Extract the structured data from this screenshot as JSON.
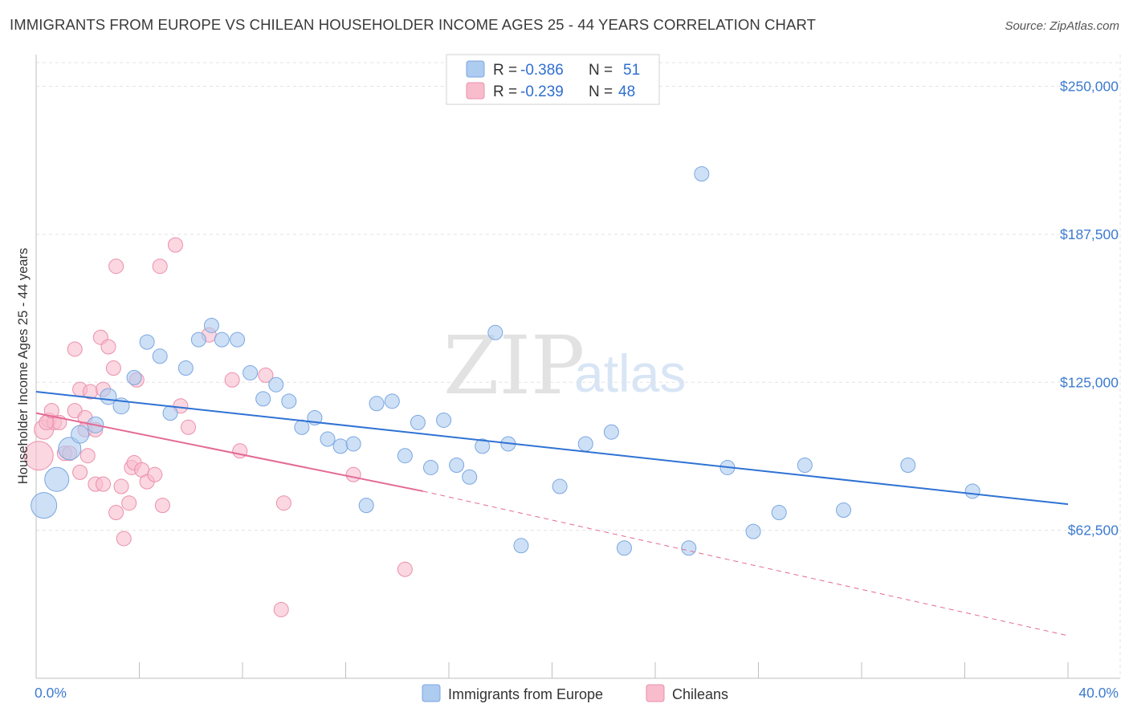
{
  "title": "IMMIGRANTS FROM EUROPE VS CHILEAN HOUSEHOLDER INCOME AGES 25 - 44 YEARS CORRELATION CHART",
  "source": "Source: ZipAtlas.com",
  "watermark": {
    "zip": "ZIP",
    "atlas": "atlas"
  },
  "legend": {
    "rows": [
      {
        "r_label": "R =",
        "r_value": "-0.386",
        "n_label": "N =",
        "n_value": "51",
        "color": "#aecbf0"
      },
      {
        "r_label": "R =",
        "r_value": "-0.239",
        "n_label": "N =",
        "n_value": "48",
        "color": "#f8bccd"
      }
    ]
  },
  "colors": {
    "blue_fill": "#aecbf0",
    "blue_stroke": "#7aa7e0",
    "blue_line": "#2f72d4",
    "pink_fill": "#f8bccd",
    "pink_stroke": "#eb8fab",
    "pink_line": "#e46a95",
    "axis_text": "#3d7bd0",
    "grid": "#e3e3e3"
  },
  "chart_data": {
    "type": "scatter",
    "title": "IMMIGRANTS FROM EUROPE VS CHILEAN HOUSEHOLDER INCOME AGES 25 - 44 YEARS CORRELATION CHART",
    "xlabel": "",
    "ylabel": "Householder Income Ages 25 - 44 years",
    "xlim": [
      0,
      40
    ],
    "ylim": [
      0,
      260000
    ],
    "x_tick_labels": [
      "0.0%",
      "40.0%"
    ],
    "y_ticks": [
      62500,
      125000,
      187500,
      250000
    ],
    "y_tick_labels": [
      "$62,500",
      "$125,000",
      "$187,500",
      "$250,000"
    ],
    "grid": "dashed horizontal",
    "legend_position": "bottom-center",
    "series": [
      {
        "name": "Immigrants from Europe",
        "color": "#aecbf0",
        "trend": {
          "x": [
            0,
            40
          ],
          "y": [
            121000,
            73500
          ],
          "style": "solid"
        },
        "points": [
          {
            "x": 0.3,
            "y": 73000,
            "s": 16
          },
          {
            "x": 0.8,
            "y": 84000,
            "s": 15
          },
          {
            "x": 1.3,
            "y": 97000,
            "s": 14
          },
          {
            "x": 1.7,
            "y": 103000,
            "s": 11
          },
          {
            "x": 2.3,
            "y": 107000,
            "s": 10
          },
          {
            "x": 2.8,
            "y": 119000,
            "s": 10
          },
          {
            "x": 3.3,
            "y": 115000,
            "s": 10
          },
          {
            "x": 3.8,
            "y": 127000,
            "s": 9
          },
          {
            "x": 4.3,
            "y": 142000,
            "s": 9
          },
          {
            "x": 4.8,
            "y": 136000,
            "s": 9
          },
          {
            "x": 5.2,
            "y": 112000,
            "s": 9
          },
          {
            "x": 5.8,
            "y": 131000,
            "s": 9
          },
          {
            "x": 6.3,
            "y": 143000,
            "s": 9
          },
          {
            "x": 6.8,
            "y": 149000,
            "s": 9
          },
          {
            "x": 7.2,
            "y": 143000,
            "s": 9
          },
          {
            "x": 7.8,
            "y": 143000,
            "s": 9
          },
          {
            "x": 8.3,
            "y": 129000,
            "s": 9
          },
          {
            "x": 8.8,
            "y": 118000,
            "s": 9
          },
          {
            "x": 9.3,
            "y": 124000,
            "s": 9
          },
          {
            "x": 9.8,
            "y": 117000,
            "s": 9
          },
          {
            "x": 10.3,
            "y": 106000,
            "s": 9
          },
          {
            "x": 10.8,
            "y": 110000,
            "s": 9
          },
          {
            "x": 11.3,
            "y": 101000,
            "s": 9
          },
          {
            "x": 11.8,
            "y": 98000,
            "s": 9
          },
          {
            "x": 12.3,
            "y": 99000,
            "s": 9
          },
          {
            "x": 12.8,
            "y": 73000,
            "s": 9
          },
          {
            "x": 13.2,
            "y": 116000,
            "s": 9
          },
          {
            "x": 13.8,
            "y": 117000,
            "s": 9
          },
          {
            "x": 14.3,
            "y": 94000,
            "s": 9
          },
          {
            "x": 14.8,
            "y": 108000,
            "s": 9
          },
          {
            "x": 15.3,
            "y": 89000,
            "s": 9
          },
          {
            "x": 15.8,
            "y": 109000,
            "s": 9
          },
          {
            "x": 16.3,
            "y": 90000,
            "s": 9
          },
          {
            "x": 16.8,
            "y": 85000,
            "s": 9
          },
          {
            "x": 17.3,
            "y": 98000,
            "s": 9
          },
          {
            "x": 17.8,
            "y": 146000,
            "s": 9
          },
          {
            "x": 18.3,
            "y": 99000,
            "s": 9
          },
          {
            "x": 18.8,
            "y": 56000,
            "s": 9
          },
          {
            "x": 20.3,
            "y": 81000,
            "s": 9
          },
          {
            "x": 21.3,
            "y": 99000,
            "s": 9
          },
          {
            "x": 22.3,
            "y": 104000,
            "s": 9
          },
          {
            "x": 22.8,
            "y": 55000,
            "s": 9
          },
          {
            "x": 25.3,
            "y": 55000,
            "s": 9
          },
          {
            "x": 25.8,
            "y": 213000,
            "s": 9
          },
          {
            "x": 26.8,
            "y": 89000,
            "s": 9
          },
          {
            "x": 27.8,
            "y": 62000,
            "s": 9
          },
          {
            "x": 28.8,
            "y": 70000,
            "s": 9
          },
          {
            "x": 29.8,
            "y": 90000,
            "s": 9
          },
          {
            "x": 31.3,
            "y": 71000,
            "s": 9
          },
          {
            "x": 33.8,
            "y": 90000,
            "s": 9
          },
          {
            "x": 36.3,
            "y": 79000,
            "s": 9
          }
        ]
      },
      {
        "name": "Chileans",
        "color": "#f8bccd",
        "trend": {
          "x": [
            0,
            15
          ],
          "y": [
            112000,
            79000
          ],
          "style": "solid",
          "dashed_extension": {
            "x": [
              15,
              40
            ],
            "y": [
              79000,
              18000
            ]
          }
        },
        "points": [
          {
            "x": 0.1,
            "y": 94000,
            "s": 18
          },
          {
            "x": 0.3,
            "y": 105000,
            "s": 12
          },
          {
            "x": 0.5,
            "y": 109000,
            "s": 9
          },
          {
            "x": 0.7,
            "y": 108000,
            "s": 9
          },
          {
            "x": 0.9,
            "y": 108000,
            "s": 9
          },
          {
            "x": 1.1,
            "y": 95000,
            "s": 9
          },
          {
            "x": 1.3,
            "y": 95000,
            "s": 9
          },
          {
            "x": 1.5,
            "y": 113000,
            "s": 9
          },
          {
            "x": 1.5,
            "y": 139000,
            "s": 9
          },
          {
            "x": 1.7,
            "y": 122000,
            "s": 9
          },
          {
            "x": 1.7,
            "y": 87000,
            "s": 9
          },
          {
            "x": 1.9,
            "y": 110000,
            "s": 9
          },
          {
            "x": 1.9,
            "y": 105000,
            "s": 9
          },
          {
            "x": 2.0,
            "y": 94000,
            "s": 9
          },
          {
            "x": 2.1,
            "y": 121000,
            "s": 9
          },
          {
            "x": 2.3,
            "y": 105000,
            "s": 9
          },
          {
            "x": 2.3,
            "y": 82000,
            "s": 9
          },
          {
            "x": 2.5,
            "y": 144000,
            "s": 9
          },
          {
            "x": 2.6,
            "y": 82000,
            "s": 9
          },
          {
            "x": 2.6,
            "y": 122000,
            "s": 9
          },
          {
            "x": 2.8,
            "y": 140000,
            "s": 9
          },
          {
            "x": 3.0,
            "y": 131000,
            "s": 9
          },
          {
            "x": 3.1,
            "y": 70000,
            "s": 9
          },
          {
            "x": 3.1,
            "y": 174000,
            "s": 9
          },
          {
            "x": 3.3,
            "y": 81000,
            "s": 9
          },
          {
            "x": 3.4,
            "y": 59000,
            "s": 9
          },
          {
            "x": 3.6,
            "y": 74000,
            "s": 9
          },
          {
            "x": 3.7,
            "y": 89000,
            "s": 9
          },
          {
            "x": 3.8,
            "y": 91000,
            "s": 9
          },
          {
            "x": 3.9,
            "y": 126000,
            "s": 9
          },
          {
            "x": 4.1,
            "y": 88000,
            "s": 9
          },
          {
            "x": 4.3,
            "y": 83000,
            "s": 9
          },
          {
            "x": 4.6,
            "y": 86000,
            "s": 9
          },
          {
            "x": 4.8,
            "y": 174000,
            "s": 9
          },
          {
            "x": 4.9,
            "y": 73000,
            "s": 9
          },
          {
            "x": 5.4,
            "y": 183000,
            "s": 9
          },
          {
            "x": 5.6,
            "y": 115000,
            "s": 9
          },
          {
            "x": 5.9,
            "y": 106000,
            "s": 9
          },
          {
            "x": 6.7,
            "y": 145000,
            "s": 9
          },
          {
            "x": 7.6,
            "y": 126000,
            "s": 9
          },
          {
            "x": 7.9,
            "y": 96000,
            "s": 9
          },
          {
            "x": 8.9,
            "y": 128000,
            "s": 9
          },
          {
            "x": 9.5,
            "y": 29000,
            "s": 9
          },
          {
            "x": 9.6,
            "y": 74000,
            "s": 9
          },
          {
            "x": 12.3,
            "y": 86000,
            "s": 9
          },
          {
            "x": 14.3,
            "y": 46000,
            "s": 9
          },
          {
            "x": 0.4,
            "y": 108000,
            "s": 9
          },
          {
            "x": 0.6,
            "y": 113000,
            "s": 9
          }
        ]
      }
    ]
  }
}
